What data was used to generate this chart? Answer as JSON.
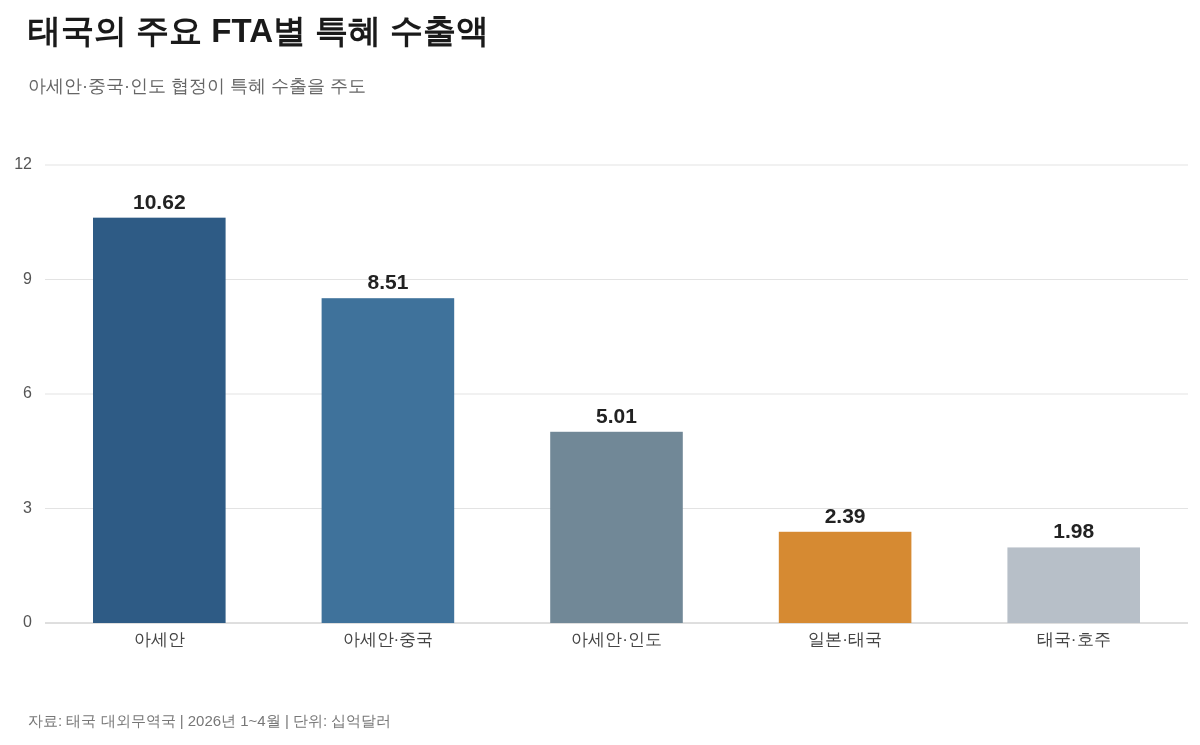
{
  "chart_data": {
    "type": "bar",
    "title": "태국의 주요 FTA별 특혜 수출액",
    "subtitle": "아세안·중국·인도 협정이 특혜 수출을 주도",
    "categories": [
      "아세안",
      "아세안·중국",
      "아세안·인도",
      "일본·태국",
      "태국·호주"
    ],
    "values": [
      10.62,
      8.51,
      5.01,
      2.39,
      1.98
    ],
    "colors": [
      "#2e5b85",
      "#3f729b",
      "#718897",
      "#d68a32",
      "#b7bfc8"
    ],
    "ylim": [
      0,
      12
    ],
    "yticks": [
      0,
      3,
      6,
      9,
      12
    ],
    "grid": "y",
    "data_labels": true,
    "annotations": [
      "자료: 태국 대외무역국 | 2026년 1~4월 | 단위: 십억달러"
    ]
  }
}
